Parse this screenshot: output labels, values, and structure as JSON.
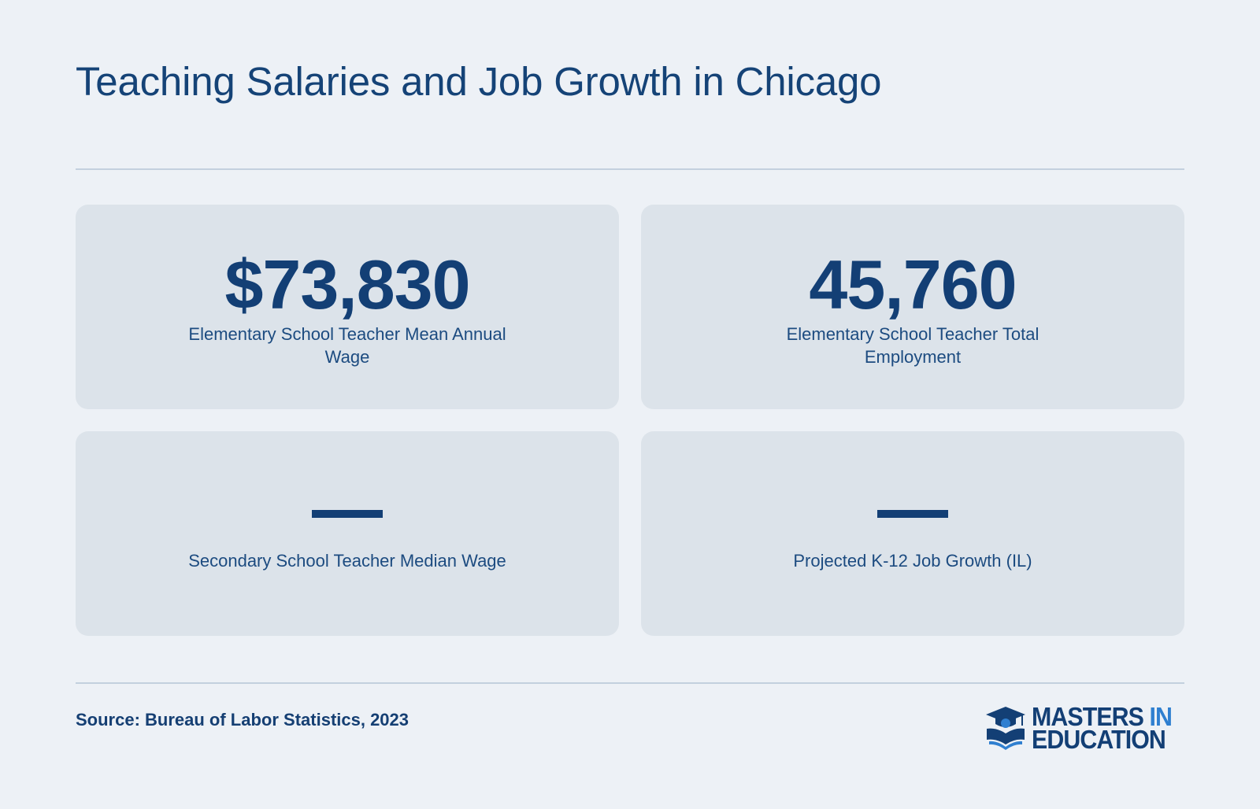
{
  "page": {
    "title": "Teaching Salaries and Job Growth in Chicago"
  },
  "stats": [
    {
      "value": "$73,830",
      "label": "Elementary School Teacher Mean Annual Wage"
    },
    {
      "value": "45,760",
      "label": "Elementary School Teacher Total Employment"
    },
    {
      "value": null,
      "label": "Secondary School Teacher Median Wage"
    },
    {
      "value": null,
      "label": "Projected K-12 Job Growth (IL)"
    }
  ],
  "footer": {
    "source": "Source: Bureau of Labor Statistics, 2023",
    "logo_line1_main": "MASTERS",
    "logo_line1_accent": "IN",
    "logo_line2": "EDUCATION"
  },
  "colors": {
    "background": "#edf1f6",
    "card": "#dce3ea",
    "primary": "#133f75",
    "accent": "#2f7fd0"
  },
  "icons": {
    "logo": "graduation-cap-book-icon"
  }
}
